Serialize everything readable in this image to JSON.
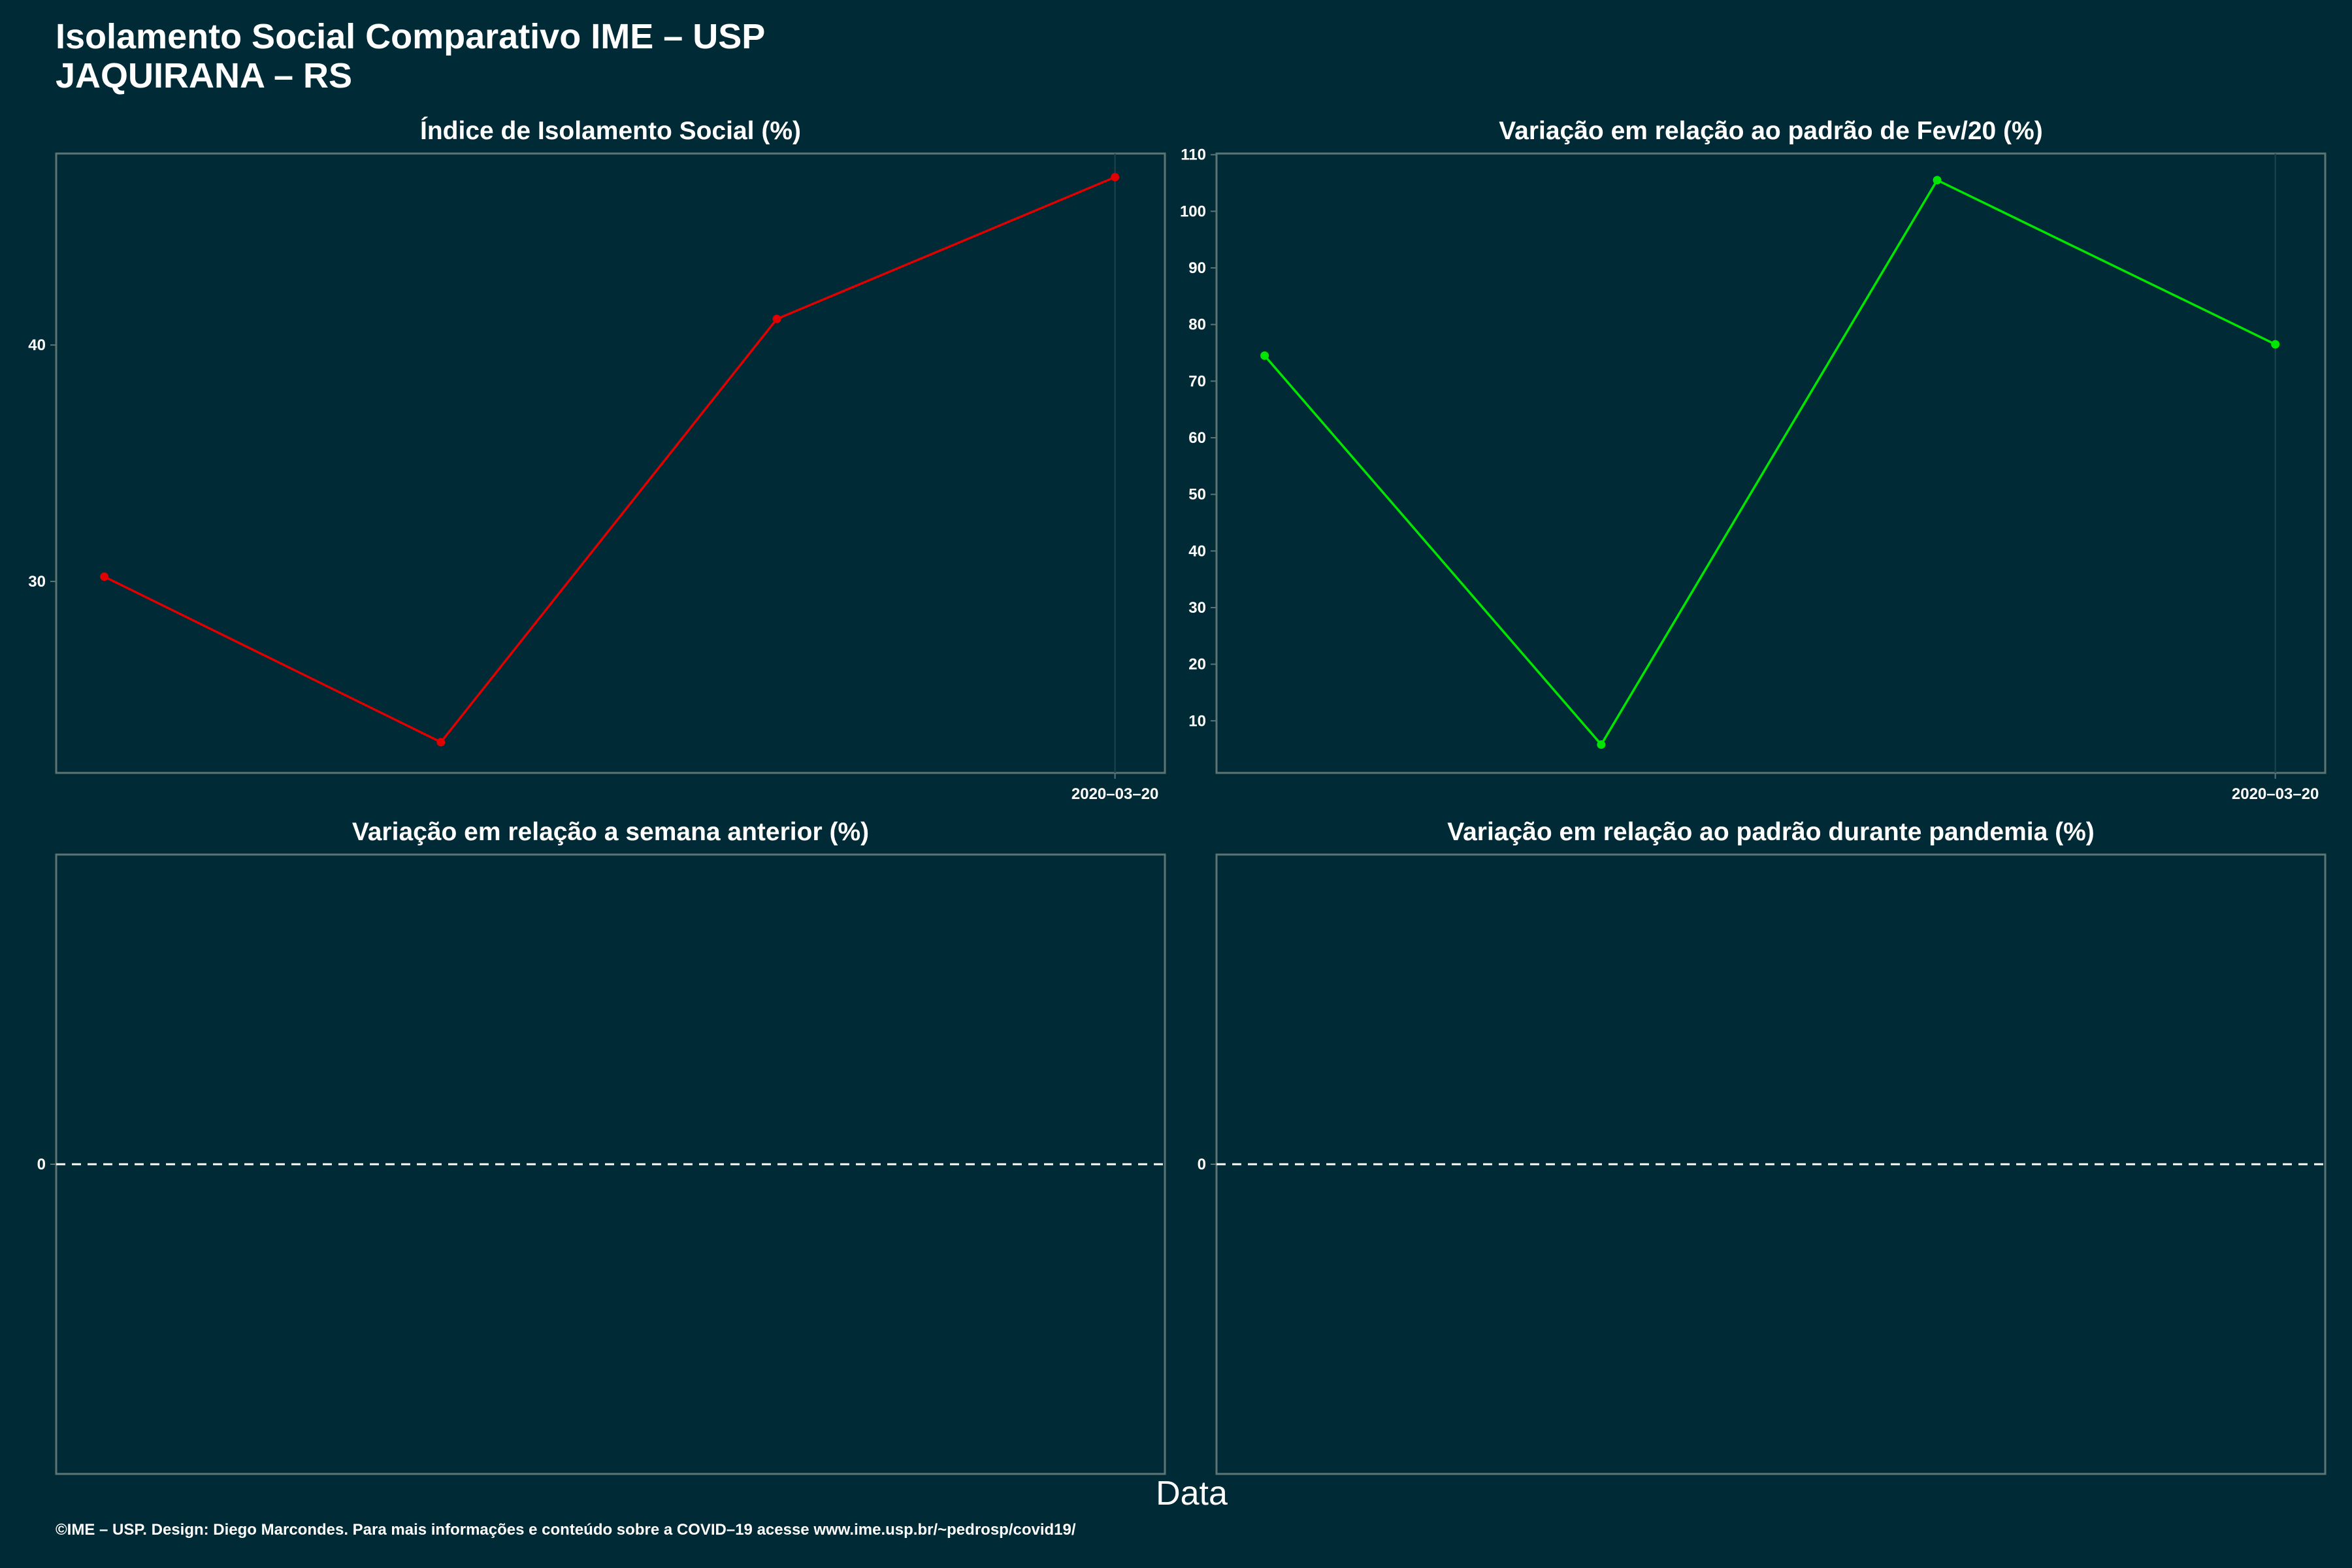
{
  "header": {
    "title": "Isolamento Social Comparativo IME – USP",
    "subtitle": "JAQUIRANA – RS"
  },
  "xlabel": "Data",
  "footer": "©IME – USP. Design: Diego Marcondes. Para mais informações e conteúdo sobre a COVID–19 acesse www.ime.usp.br/~pedrosp/covid19/",
  "colors": {
    "background": "#002b36",
    "panel_border": "#5c7474",
    "red_series": "#e00000",
    "green_series": "#00e600",
    "reference_line": "#ffffff"
  },
  "chart_data": [
    {
      "type": "line",
      "title": "Índice de Isolamento Social (%)",
      "x_tick_labels": [
        "2020–03–20"
      ],
      "y_ticks": [
        30,
        40
      ],
      "ylim": [
        21.9,
        48.1
      ],
      "color": "#e00000",
      "series": [
        {
          "x": [
            1,
            2,
            3,
            4
          ],
          "values": [
            30.2,
            23.2,
            41.1,
            47.1
          ]
        }
      ]
    },
    {
      "type": "line",
      "title": "Variação em relação ao padrão de Fev/20 (%)",
      "x_tick_labels": [
        "2020–03–20"
      ],
      "y_ticks": [
        10,
        20,
        30,
        40,
        50,
        60,
        70,
        80,
        90,
        100,
        110
      ],
      "ylim": [
        0.8,
        110.2
      ],
      "color": "#00e600",
      "series": [
        {
          "x": [
            1,
            2,
            3,
            4
          ],
          "values": [
            74.5,
            5.8,
            105.5,
            76.5
          ]
        }
      ]
    },
    {
      "type": "line",
      "title": "Variação em relação a semana anterior (%)",
      "y_ticks": [
        0
      ],
      "ylim": [
        -1,
        1
      ],
      "reference_line": 0,
      "series": []
    },
    {
      "type": "line",
      "title": "Variação em relação ao padrão durante pandemia (%)",
      "y_ticks": [
        0
      ],
      "ylim": [
        -1,
        1
      ],
      "reference_line": 0,
      "series": []
    }
  ]
}
